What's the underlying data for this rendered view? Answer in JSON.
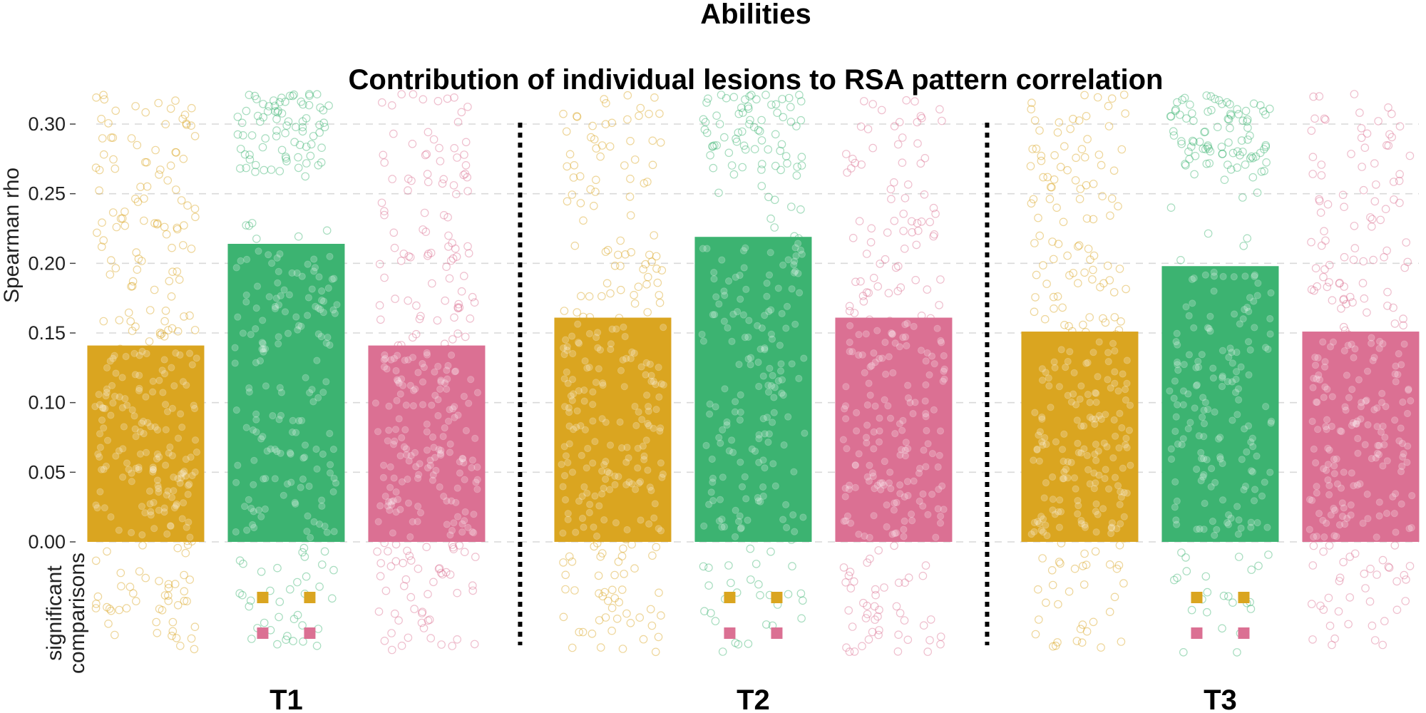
{
  "chart_data": {
    "type": "bar",
    "suptitle": "Abilities",
    "title": "Contribution of individual lesions to RSA pattern correlation",
    "ylabel": "Spearman rho",
    "sig_label_lines": [
      "significant",
      "comparisons"
    ],
    "groups": [
      "T1",
      "T2",
      "T3"
    ],
    "ylim": [
      0.0,
      0.32
    ],
    "yticks": [
      0.0,
      0.05,
      0.1,
      0.15,
      0.2,
      0.25,
      0.3
    ],
    "grid": true,
    "series": [
      {
        "color": "#daa520",
        "values": [
          0.141,
          0.161,
          0.151
        ]
      },
      {
        "color": "#3cb371",
        "values": [
          0.214,
          0.219,
          0.198
        ]
      },
      {
        "color": "#db7093",
        "values": [
          0.141,
          0.161,
          0.151
        ]
      }
    ],
    "significant_comparisons": [
      {
        "group": "T1",
        "marker_colors": [
          "#daa520",
          "#db7093"
        ]
      },
      {
        "group": "T2",
        "marker_colors": [
          "#daa520",
          "#db7093"
        ]
      },
      {
        "group": "T3",
        "marker_colors": [
          "#daa520",
          "#db7093"
        ]
      }
    ]
  }
}
